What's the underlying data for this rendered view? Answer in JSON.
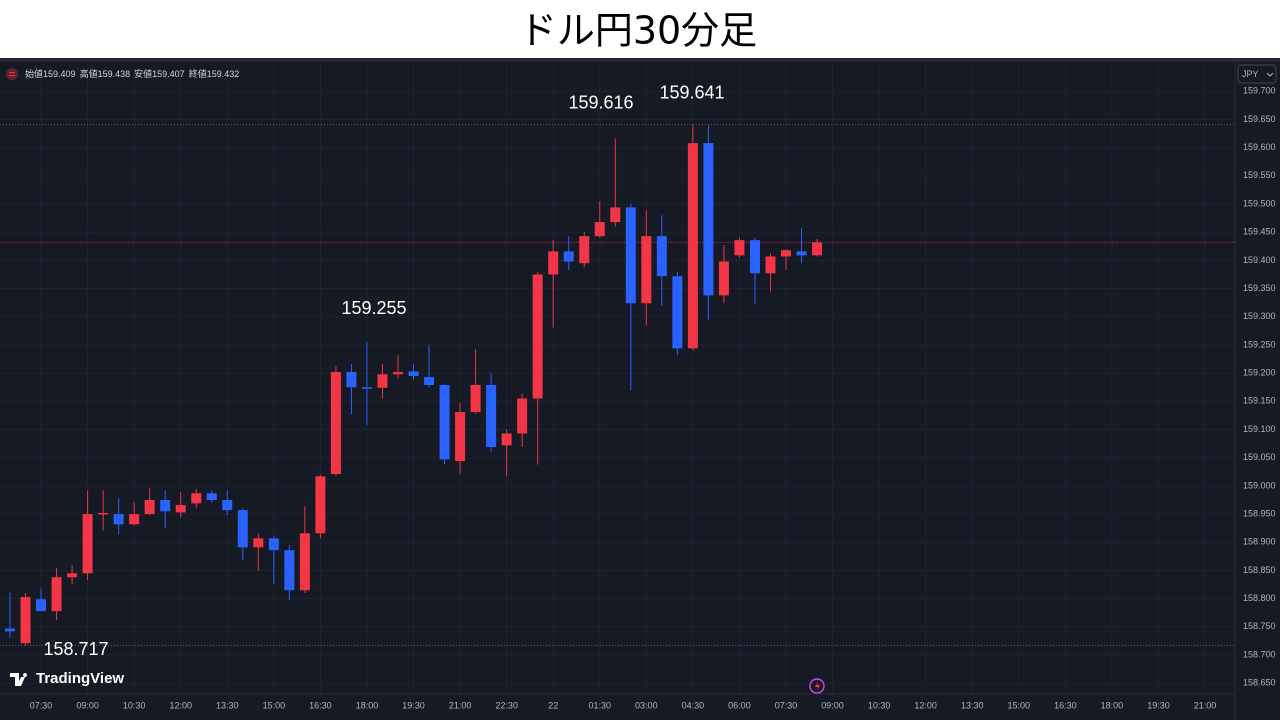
{
  "chart_data": {
    "type": "candlestick",
    "title": "ドル円30分足",
    "header": [
      {
        "label": "始値",
        "value": 159.409
      },
      {
        "label": "高値",
        "value": 159.438
      },
      {
        "label": "安値",
        "value": 159.407
      },
      {
        "label": "終値",
        "value": 159.432
      }
    ],
    "currency": "JPY",
    "brand": "TradingView",
    "colors": {
      "up": "#f23645",
      "down": "#2962ff",
      "last_price": "#c2185b"
    },
    "open": [
      158.747,
      158.721,
      158.799,
      158.778,
      158.838,
      158.845,
      158.951,
      158.95,
      158.932,
      158.95,
      158.975,
      158.953,
      158.969,
      158.987,
      158.975,
      158.957,
      158.891,
      158.907,
      158.886,
      158.815,
      158.916,
      159.021,
      159.202,
      159.175,
      159.174,
      159.198,
      159.203,
      159.193,
      159.179,
      159.044,
      159.131,
      159.179,
      159.072,
      159.093,
      159.155,
      159.375,
      159.416,
      159.395,
      159.443,
      159.468,
      159.494,
      159.324,
      159.443,
      159.372,
      159.244,
      159.608,
      159.338,
      159.409,
      159.436,
      159.377,
      159.407,
      159.416,
      159.409
    ],
    "high": [
      158.811,
      158.81,
      158.818,
      158.854,
      158.859,
      158.992,
      158.992,
      158.978,
      158.971,
      158.996,
      158.992,
      158.989,
      158.995,
      158.992,
      158.992,
      158.96,
      158.916,
      158.912,
      158.895,
      158.964,
      159.02,
      159.212,
      159.216,
      159.255,
      159.216,
      159.232,
      159.216,
      159.25,
      159.18,
      159.147,
      159.242,
      159.2,
      159.1,
      159.164,
      159.38,
      159.436,
      159.443,
      159.45,
      159.505,
      159.616,
      159.5,
      159.489,
      159.48,
      159.38,
      159.641,
      159.64,
      159.427,
      159.44,
      159.44,
      159.412,
      159.42,
      159.457,
      159.438
    ],
    "low": [
      158.73,
      158.717,
      158.778,
      158.762,
      158.826,
      158.833,
      158.921,
      158.914,
      158.93,
      158.948,
      158.925,
      158.944,
      158.96,
      158.97,
      158.948,
      158.868,
      158.85,
      158.826,
      158.797,
      158.81,
      158.907,
      159.018,
      159.127,
      159.108,
      159.155,
      159.19,
      159.188,
      159.175,
      159.038,
      159.021,
      159.128,
      159.06,
      159.017,
      159.069,
      159.038,
      159.281,
      159.383,
      159.388,
      159.44,
      159.46,
      159.17,
      159.285,
      159.32,
      159.232,
      159.24,
      159.294,
      159.324,
      159.405,
      159.322,
      159.345,
      159.383,
      159.395,
      159.407
    ],
    "close": [
      158.742,
      158.803,
      158.778,
      158.838,
      158.845,
      158.95,
      158.952,
      158.932,
      158.95,
      158.975,
      158.955,
      158.966,
      158.987,
      158.975,
      158.957,
      158.891,
      158.907,
      158.886,
      158.815,
      158.916,
      159.017,
      159.202,
      159.175,
      159.174,
      159.198,
      159.202,
      159.195,
      159.179,
      159.047,
      159.131,
      159.179,
      159.069,
      159.093,
      159.155,
      159.375,
      159.416,
      159.398,
      159.443,
      159.468,
      159.494,
      159.324,
      159.443,
      159.372,
      159.244,
      159.608,
      159.338,
      159.398,
      159.436,
      159.377,
      159.407,
      159.418,
      159.409,
      159.432
    ],
    "annotations": [
      159.641,
      159.616,
      159.255,
      158.717
    ],
    "price_lines": [
      159.641,
      158.717
    ],
    "last_price": 159.432,
    "ylim": [
      158.638,
      159.759
    ],
    "yticks": [
      {
        "value": 159.7,
        "label": "159.700"
      },
      {
        "value": 159.65,
        "label": "159.650"
      },
      {
        "value": 159.6,
        "label": "159.600"
      },
      {
        "value": 159.55,
        "label": "159.550"
      },
      {
        "value": 159.5,
        "label": "159.500"
      },
      {
        "value": 159.45,
        "label": "159.450"
      },
      {
        "value": 159.4,
        "label": "159.400"
      },
      {
        "value": 159.35,
        "label": "159.350"
      },
      {
        "value": 159.3,
        "label": "159.300"
      },
      {
        "value": 159.25,
        "label": "159.250"
      },
      {
        "value": 159.2,
        "label": "159.200"
      },
      {
        "value": 159.15,
        "label": "159.150"
      },
      {
        "value": 159.1,
        "label": "159.100"
      },
      {
        "value": 159.05,
        "label": "159.050"
      },
      {
        "value": 159.0,
        "label": "159.000"
      },
      {
        "value": 158.95,
        "label": "158.950"
      },
      {
        "value": 158.9,
        "label": "158.900"
      },
      {
        "value": 158.85,
        "label": "158.850"
      },
      {
        "value": 158.8,
        "label": "158.800"
      },
      {
        "value": 158.75,
        "label": "158.750"
      },
      {
        "value": 158.7,
        "label": "158.700"
      },
      {
        "value": 158.65,
        "label": "158.650"
      }
    ],
    "xticks": [
      "07:30",
      "09:00",
      "10:30",
      "12:00",
      "13:30",
      "15:00",
      "16:30",
      "18:00",
      "19:30",
      "21:00",
      "22:30",
      "22",
      "01:30",
      "03:00",
      "04:30",
      "06:00",
      "07:30",
      "09:00",
      "10:30",
      "12:00",
      "13:30",
      "15:00",
      "16:30",
      "18:00",
      "19:30",
      "21:00"
    ]
  }
}
